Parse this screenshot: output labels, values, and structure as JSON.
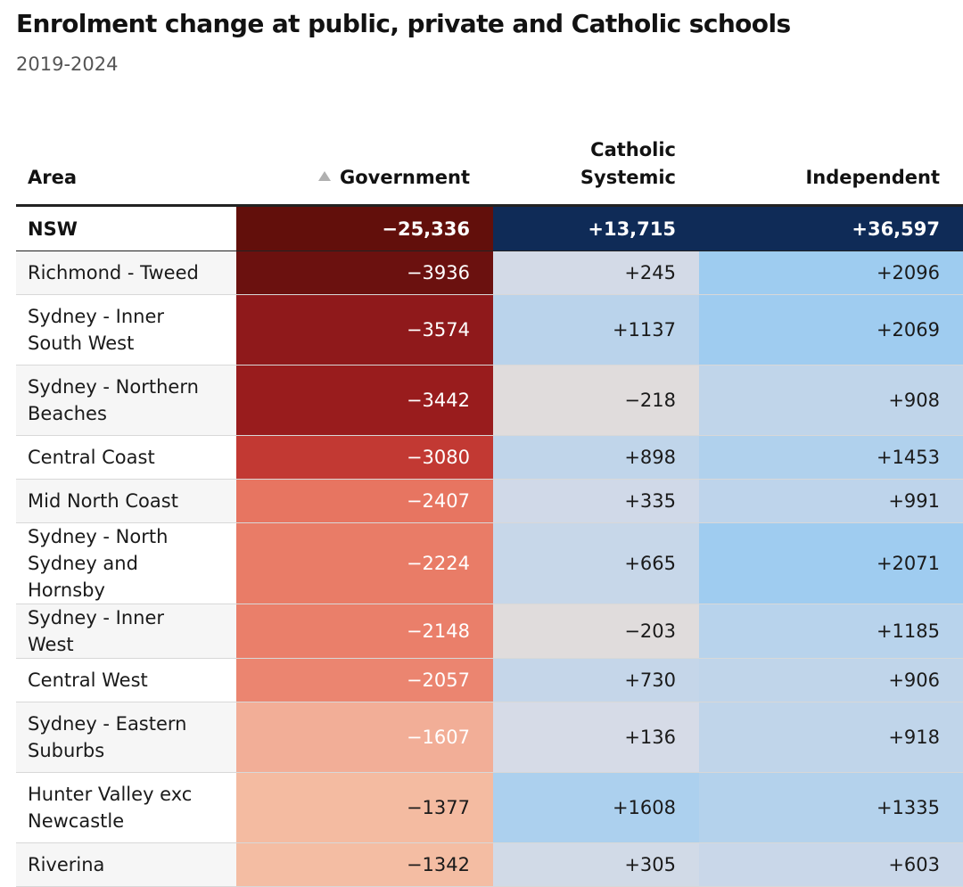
{
  "title": "Enrolment change at public, private and Catholic schools",
  "subtitle": "2019-2024",
  "colors": {
    "negative_dark": "#620f0b",
    "negative_light": "#f3bfa5",
    "positive_dark": "#0f2b57",
    "neutral_negative": "#e0dcdc",
    "positive_light": "#bcd6f5"
  },
  "chart_data": {
    "type": "table",
    "columns": [
      {
        "key": "area",
        "label": "Area",
        "align": "left",
        "sort": null
      },
      {
        "key": "government",
        "label": "Government",
        "align": "right",
        "sort": "ascending"
      },
      {
        "key": "catholic",
        "label": "Catholic\nSystemic",
        "align": "right",
        "sort": null
      },
      {
        "key": "independent",
        "label": "Independent",
        "align": "right",
        "sort": null
      }
    ],
    "sort_icon": "triangle-up-icon",
    "total": {
      "area": "NSW",
      "government": "−25,336",
      "catholic": "+13,715",
      "independent": "+36,597"
    },
    "rows": [
      {
        "area": "Richmond - Tweed",
        "government": "−3936",
        "catholic": "+245",
        "independent": "+2096",
        "gov_value": -3936,
        "cat_value": 245,
        "ind_value": 2096
      },
      {
        "area": "Sydney - Inner South West",
        "government": "−3574",
        "catholic": "+1137",
        "independent": "+2069",
        "gov_value": -3574,
        "cat_value": 1137,
        "ind_value": 2069
      },
      {
        "area": "Sydney - Northern Beaches",
        "government": "−3442",
        "catholic": "−218",
        "independent": "+908",
        "gov_value": -3442,
        "cat_value": -218,
        "ind_value": 908
      },
      {
        "area": "Central Coast",
        "government": "−3080",
        "catholic": "+898",
        "independent": "+1453",
        "gov_value": -3080,
        "cat_value": 898,
        "ind_value": 1453
      },
      {
        "area": "Mid North Coast",
        "government": "−2407",
        "catholic": "+335",
        "independent": "+991",
        "gov_value": -2407,
        "cat_value": 335,
        "ind_value": 991
      },
      {
        "area": "Sydney - North Sydney and Hornsby",
        "government": "−2224",
        "catholic": "+665",
        "independent": "+2071",
        "gov_value": -2224,
        "cat_value": 665,
        "ind_value": 2071
      },
      {
        "area": "Sydney - Inner West",
        "government": "−2148",
        "catholic": "−203",
        "independent": "+1185",
        "gov_value": -2148,
        "cat_value": -203,
        "ind_value": 1185
      },
      {
        "area": "Central West",
        "government": "−2057",
        "catholic": "+730",
        "independent": "+906",
        "gov_value": -2057,
        "cat_value": 730,
        "ind_value": 906
      },
      {
        "area": "Sydney - Eastern Suburbs",
        "government": "−1607",
        "catholic": "+136",
        "independent": "+918",
        "gov_value": -1607,
        "cat_value": 136,
        "ind_value": 918
      },
      {
        "area": "Hunter Valley exc Newcastle",
        "government": "−1377",
        "catholic": "+1608",
        "independent": "+1335",
        "gov_value": -1377,
        "cat_value": 1608,
        "ind_value": 1335
      },
      {
        "area": "Riverina",
        "government": "−1342",
        "catholic": "+305",
        "independent": "+603",
        "gov_value": -1342,
        "cat_value": 305,
        "ind_value": 603
      }
    ]
  }
}
